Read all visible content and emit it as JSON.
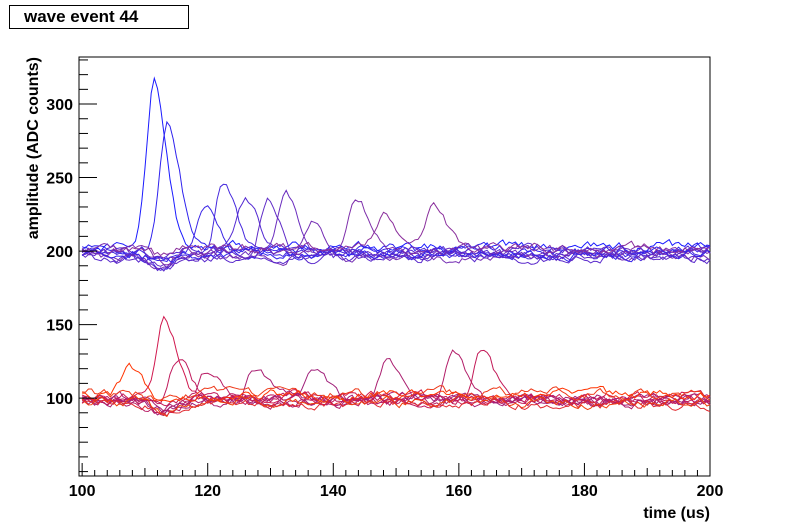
{
  "chart_data": {
    "type": "line",
    "title": "wave event 44",
    "xlabel": "time (us)",
    "ylabel": "amplitude (ADC counts)",
    "xlim": [
      99.5,
      200
    ],
    "ylim": [
      47,
      332
    ],
    "x_ticks": [
      100,
      120,
      140,
      160,
      180,
      200
    ],
    "y_ticks": [
      100,
      150,
      200,
      250,
      300
    ],
    "grid": false,
    "legend": "none",
    "sample_step_us": 0.5,
    "series_color_range": [
      "#1a1aff",
      "#ff3300"
    ],
    "series": [
      {
        "color": "#1a1aff",
        "baseline": 203,
        "pulses": [
          {
            "t": 111.5,
            "amp": 116
          }
        ]
      },
      {
        "color": "#2f22ee",
        "baseline": 201,
        "pulses": [
          {
            "t": 113.5,
            "amp": 94
          }
        ]
      },
      {
        "color": "#3a25e6",
        "baseline": 199,
        "pulses": [
          {
            "t": 119.5,
            "amp": 31
          }
        ]
      },
      {
        "color": "#4528dd",
        "baseline": 198,
        "pulses": [
          {
            "t": 122.5,
            "amp": 50
          }
        ]
      },
      {
        "color": "#5329d2",
        "baseline": 200,
        "pulses": [
          {
            "t": 126,
            "amp": 32
          }
        ]
      },
      {
        "color": "#5f2bc7",
        "baseline": 197,
        "pulses": [
          {
            "t": 129.5,
            "amp": 40
          }
        ]
      },
      {
        "color": "#6a2cbe",
        "baseline": 199,
        "pulses": [
          {
            "t": 132.5,
            "amp": 39
          }
        ]
      },
      {
        "color": "#742db3",
        "baseline": 196,
        "pulses": [
          {
            "t": 136.5,
            "amp": 26
          }
        ]
      },
      {
        "color": "#7d2eaa",
        "baseline": 200,
        "pulses": [
          {
            "t": 143.5,
            "amp": 38
          }
        ]
      },
      {
        "color": "#8a2f9c",
        "baseline": 202,
        "pulses": [
          {
            "t": 148,
            "amp": 22
          },
          {
            "t": 156,
            "amp": 27
          }
        ]
      },
      {
        "color": "#3422ec",
        "baseline": 198,
        "pulses": []
      },
      {
        "color": "#5a2acc",
        "baseline": 195,
        "pulses": []
      },
      {
        "color": "#d0184e",
        "baseline": 101,
        "pulses": [
          {
            "t": 113,
            "amp": 60
          }
        ]
      },
      {
        "color": "#c01a5c",
        "baseline": 99,
        "pulses": [
          {
            "t": 115,
            "amp": 28
          }
        ]
      },
      {
        "color": "#b81c64",
        "baseline": 98,
        "pulses": [
          {
            "t": 120,
            "amp": 20
          }
        ]
      },
      {
        "color": "#a81e72",
        "baseline": 100,
        "pulses": [
          {
            "t": 127.5,
            "amp": 20
          }
        ]
      },
      {
        "color": "#a0207a",
        "baseline": 99,
        "pulses": [
          {
            "t": 137,
            "amp": 22
          }
        ]
      },
      {
        "color": "#aa1f70",
        "baseline": 98,
        "pulses": [
          {
            "t": 148.5,
            "amp": 30
          }
        ]
      },
      {
        "color": "#b21d68",
        "baseline": 97,
        "pulses": [
          {
            "t": 159,
            "amp": 35
          }
        ]
      },
      {
        "color": "#c21a58",
        "baseline": 99,
        "pulses": [
          {
            "t": 163.5,
            "amp": 34
          }
        ]
      },
      {
        "color": "#ff3300",
        "baseline": 102,
        "pulses": [
          {
            "t": 107.5,
            "amp": 20
          }
        ]
      },
      {
        "color": "#f0400a",
        "baseline": 97,
        "pulses": []
      },
      {
        "color": "#e12a30",
        "baseline": 96,
        "pulses": []
      },
      {
        "color": "#ee3818",
        "baseline": 103,
        "pulses": []
      }
    ]
  }
}
